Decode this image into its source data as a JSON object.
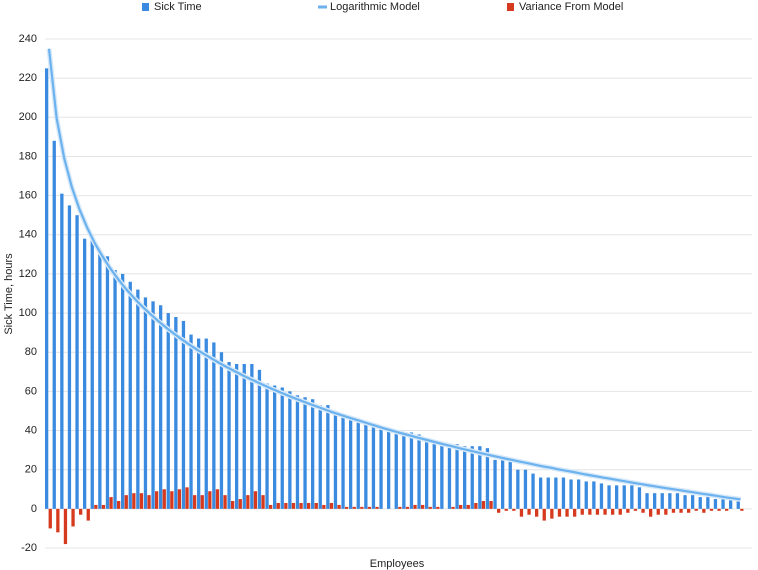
{
  "chart_data": {
    "type": "bar",
    "x_label": "Employees",
    "y_label": "Sick Time, hours",
    "categories": [
      null,
      null,
      null,
      null,
      null,
      null,
      null,
      null,
      null,
      null,
      null,
      null,
      null,
      null,
      null,
      null,
      null,
      null,
      null,
      null,
      null,
      null,
      null,
      null,
      null,
      null,
      null,
      null,
      null,
      null,
      null,
      null,
      null,
      null,
      null,
      null,
      null,
      null,
      null,
      null,
      null,
      null,
      null,
      null,
      null,
      null,
      null,
      null,
      null,
      null,
      null,
      null,
      null,
      null,
      null,
      null,
      null,
      null,
      null,
      null,
      null,
      null,
      null,
      null,
      null,
      null,
      null,
      null,
      null,
      null,
      null,
      null,
      null,
      null,
      null,
      null,
      null,
      null,
      null,
      null,
      null,
      null,
      null,
      null,
      null,
      null,
      null,
      null,
      null,
      null,
      null,
      null
    ],
    "series": [
      {
        "name": "Sick Time",
        "type": "bar",
        "color": "#3a8ae0",
        "values": [
          225,
          188,
          161,
          155,
          150,
          138,
          138,
          131,
          129,
          122,
          120,
          116,
          112,
          108,
          106,
          104,
          100,
          98,
          96,
          89,
          87,
          87,
          85,
          80,
          75,
          74,
          74,
          74,
          71,
          64,
          63,
          62,
          60,
          58,
          57,
          56,
          53,
          53,
          50,
          48,
          47,
          46,
          45,
          43,
          41,
          40,
          40,
          39,
          39,
          38,
          36,
          35,
          33,
          33,
          33,
          32,
          32,
          32,
          31,
          25,
          25,
          24,
          20,
          20,
          18,
          16,
          16,
          16,
          16,
          15,
          15,
          14,
          14,
          13,
          12,
          12,
          12,
          12,
          11,
          8,
          8,
          8,
          8,
          8,
          7,
          7,
          6,
          6,
          5,
          5,
          5,
          4
        ]
      },
      {
        "name": "Logarithmic Model",
        "type": "line",
        "color": "#6cb2ee",
        "values": [
          235,
          199.7,
          179.1,
          164.4,
          153.1,
          143.8,
          135.9,
          129.2,
          123.2,
          117.8,
          112.9,
          108.5,
          104.4,
          100.7,
          97.2,
          93.9,
          90.8,
          87.9,
          85.1,
          82.5,
          80.0,
          77.7,
          75.4,
          73.2,
          71.2,
          69.2,
          67.2,
          65.4,
          63.6,
          61.9,
          60.2,
          58.6,
          57.0,
          55.5,
          54.0,
          52.6,
          51.2,
          49.8,
          48.5,
          47.2,
          46.0,
          44.8,
          43.6,
          42.4,
          41.2,
          40.1,
          39.0,
          38.0,
          36.9,
          35.9,
          34.9,
          33.9,
          32.9,
          32.0,
          31.0,
          30.1,
          29.2,
          28.3,
          27.4,
          26.6,
          25.7,
          24.9,
          24.1,
          23.3,
          22.5,
          21.7,
          21.0,
          20.2,
          19.5,
          18.8,
          18.0,
          17.3,
          16.6,
          15.9,
          15.3,
          14.6,
          13.9,
          13.2,
          12.6,
          11.9,
          11.3,
          10.7,
          10.1,
          9.5,
          8.9,
          8.3,
          7.7,
          7.1,
          6.5,
          5.9,
          5.4,
          4.8
        ]
      },
      {
        "name": "Variance From Model",
        "type": "bar",
        "color": "#d63a1e",
        "values": [
          -10,
          -12,
          -18,
          -9,
          -3,
          -6,
          2,
          2,
          6,
          4,
          7,
          8,
          8,
          7,
          9,
          10,
          9,
          10,
          11,
          7,
          7,
          9,
          10,
          7,
          4,
          5,
          7,
          9,
          7,
          2,
          3,
          3,
          3,
          3,
          3,
          3,
          2,
          3,
          2,
          1,
          1,
          1,
          1,
          1,
          0,
          0,
          1,
          1,
          2,
          2,
          1,
          1,
          0,
          1,
          2,
          2,
          3,
          4,
          4,
          -2,
          -1,
          -1,
          -4,
          -3,
          -4,
          -6,
          -5,
          -4,
          -4,
          -4,
          -3,
          -3,
          -3,
          -3,
          -3,
          -3,
          -2,
          -1,
          -2,
          -4,
          -3,
          -3,
          -2,
          -2,
          -2,
          -1,
          -2,
          -1,
          -1,
          -1,
          0,
          -1
        ]
      }
    ],
    "ylim": [
      -20,
      240
    ],
    "yticks": [
      -20,
      0,
      20,
      40,
      60,
      80,
      100,
      120,
      140,
      160,
      180,
      200,
      220,
      240
    ],
    "grid": true
  }
}
